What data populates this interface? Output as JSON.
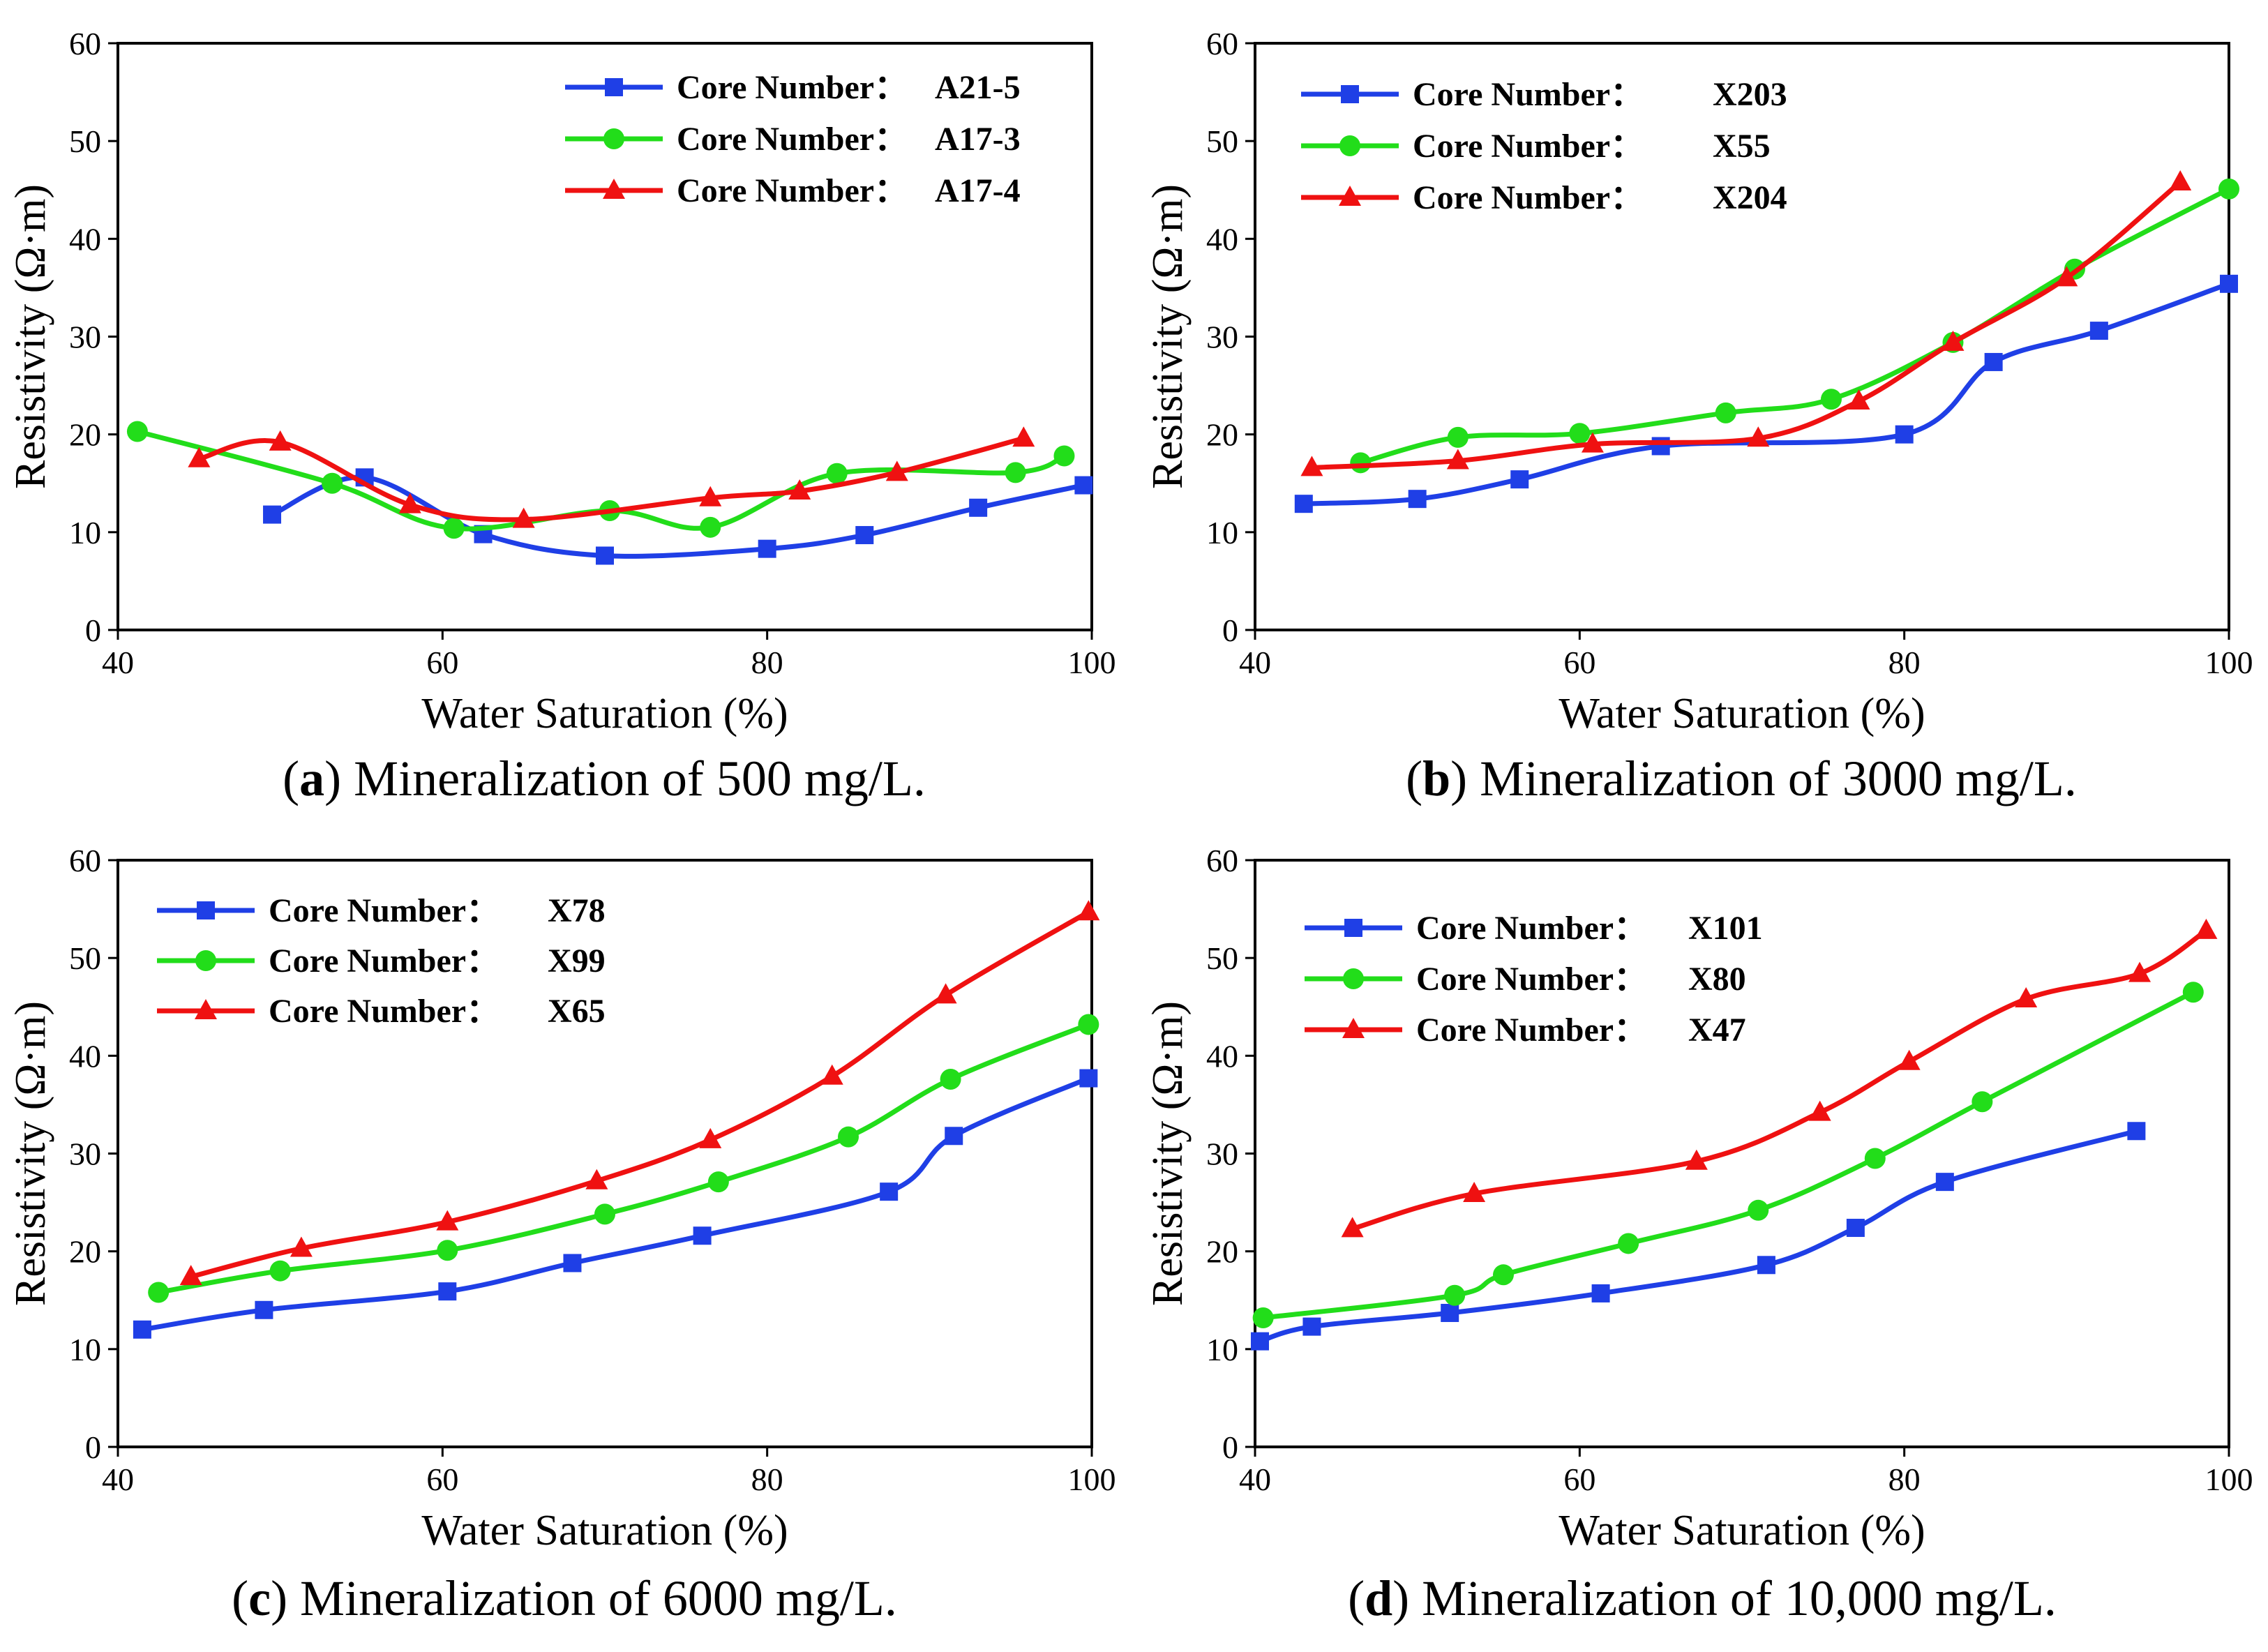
{
  "colors": {
    "blue": "#1f3fe6",
    "green": "#22dd1a",
    "red": "#ef1111"
  },
  "chart_data": [
    {
      "type": "line",
      "panel": "a",
      "caption_label": "a",
      "caption_text": "Mineralization of 500 mg/L.",
      "xlabel": "Water Saturation (%)",
      "ylabel": "Resistivity (Ω·m)",
      "xlim": [
        40,
        100
      ],
      "ylim": [
        0,
        60
      ],
      "xticks": [
        40,
        60,
        80,
        100
      ],
      "yticks": [
        0,
        10,
        20,
        30,
        40,
        50,
        60
      ],
      "legend_position": "top-right",
      "series": [
        {
          "name": "Core Number：",
          "id": "A21-5",
          "color": "blue",
          "marker": "square",
          "x": [
            49.5,
            55.2,
            62.5,
            70,
            80,
            86,
            93,
            99.5
          ],
          "y": [
            11.8,
            15.6,
            9.8,
            7.6,
            8.3,
            9.7,
            12.5,
            14.8
          ]
        },
        {
          "name": "Core Number：",
          "id": "A17-3",
          "color": "green",
          "marker": "circle",
          "x": [
            41.2,
            53.2,
            60.7,
            70.3,
            76.5,
            84.3,
            95.3,
            98.3
          ],
          "y": [
            20.3,
            15,
            10.4,
            12.2,
            10.5,
            16,
            16.1,
            17.8
          ]
        },
        {
          "name": "Core Number：",
          "id": "A17-4",
          "color": "red",
          "marker": "triangle",
          "x": [
            45,
            50,
            58,
            65,
            76.5,
            82,
            88,
            95.8
          ],
          "y": [
            17.5,
            19.2,
            12.8,
            11.3,
            13.5,
            14.2,
            16.1,
            19.6
          ]
        }
      ]
    },
    {
      "type": "line",
      "panel": "b",
      "caption_label": "b",
      "caption_text": "Mineralization of 3000 mg/L.",
      "xlabel": "Water Saturation (%)",
      "ylabel": "Resistivity (Ω·m)",
      "xlim": [
        40,
        100
      ],
      "ylim": [
        0,
        60
      ],
      "xticks": [
        40,
        60,
        80,
        100
      ],
      "yticks": [
        0,
        10,
        20,
        30,
        40,
        50,
        60
      ],
      "legend_position": "top-left",
      "series": [
        {
          "name": "Core Number：",
          "id": "X203",
          "color": "blue",
          "marker": "square",
          "x": [
            43,
            50,
            56.3,
            65,
            80,
            85.5,
            92,
            100
          ],
          "y": [
            12.9,
            13.4,
            15.4,
            18.8,
            20,
            27.4,
            30.6,
            35.4
          ]
        },
        {
          "name": "Core Number：",
          "id": "X55",
          "color": "green",
          "marker": "circle",
          "x": [
            46.5,
            52.5,
            60,
            69,
            75.5,
            83,
            90.5,
            100
          ],
          "y": [
            17.1,
            19.7,
            20.1,
            22.2,
            23.6,
            29.4,
            36.9,
            45.1
          ]
        },
        {
          "name": "Core Number：",
          "id": "X204",
          "color": "red",
          "marker": "triangle",
          "x": [
            43.5,
            52.5,
            60.8,
            71,
            77.2,
            83,
            90,
            97
          ],
          "y": [
            16.6,
            17.3,
            19,
            19.6,
            23.4,
            29.4,
            36,
            45.8
          ]
        }
      ]
    },
    {
      "type": "line",
      "panel": "c",
      "caption_label": "c",
      "caption_text": "Mineralization of 6000 mg/L.",
      "xlabel": "Water Saturation (%)",
      "ylabel": "Resistivity (Ω·m)",
      "xlim": [
        40,
        100
      ],
      "ylim": [
        0,
        60
      ],
      "xticks": [
        40,
        60,
        80,
        100
      ],
      "yticks": [
        0,
        10,
        20,
        30,
        40,
        50,
        60
      ],
      "legend_position": "top-left",
      "series": [
        {
          "name": "Core Number：",
          "id": "X78",
          "color": "blue",
          "marker": "square",
          "x": [
            41.5,
            49,
            60.3,
            68,
            76,
            87.5,
            91.5,
            99.8
          ],
          "y": [
            12,
            14,
            15.9,
            18.8,
            21.6,
            26.1,
            31.8,
            37.7
          ]
        },
        {
          "name": "Core Number：",
          "id": "X99",
          "color": "green",
          "marker": "circle",
          "x": [
            42.5,
            50,
            60.3,
            70,
            77,
            85,
            91.3,
            99.8
          ],
          "y": [
            15.8,
            18,
            20.1,
            23.8,
            27.1,
            31.7,
            37.6,
            43.2
          ]
        },
        {
          "name": "Core Number：",
          "id": "X65",
          "color": "red",
          "marker": "triangle",
          "x": [
            44.5,
            51.3,
            60.3,
            69.5,
            76.5,
            84,
            91,
            99.8
          ],
          "y": [
            17.4,
            20.3,
            23,
            27.2,
            31.4,
            37.9,
            46.2,
            54.7
          ]
        }
      ]
    },
    {
      "type": "line",
      "panel": "d",
      "caption_label": "d",
      "caption_text": "Mineralization of 10,000 mg/L.",
      "xlabel": "Water Saturation (%)",
      "ylabel": "Resistivity (Ω·m)",
      "xlim": [
        40,
        100
      ],
      "ylim": [
        0,
        60
      ],
      "xticks": [
        40,
        60,
        80,
        100
      ],
      "yticks": [
        0,
        10,
        20,
        30,
        40,
        50,
        60
      ],
      "legend_position": "top-left",
      "series": [
        {
          "name": "Core Number：",
          "id": "X101",
          "color": "blue",
          "marker": "square",
          "x": [
            40.3,
            43.5,
            52,
            61.3,
            71.5,
            77,
            82.5,
            94.3
          ],
          "y": [
            10.8,
            12.3,
            13.7,
            15.7,
            18.6,
            22.4,
            27.1,
            32.3
          ]
        },
        {
          "name": "Core Number：",
          "id": "X80",
          "color": "green",
          "marker": "circle",
          "x": [
            40.5,
            52.3,
            55.3,
            63,
            71,
            78.2,
            84.8,
            97.8
          ],
          "y": [
            13.2,
            15.5,
            17.6,
            20.8,
            24.2,
            29.5,
            35.3,
            46.5
          ]
        },
        {
          "name": "Core Number：",
          "id": "X47",
          "color": "red",
          "marker": "triangle",
          "x": [
            46,
            53.5,
            67.2,
            74.8,
            80.3,
            87.5,
            94.5,
            98.6
          ],
          "y": [
            22.3,
            25.9,
            29.2,
            34.2,
            39.4,
            45.8,
            48.4,
            52.8
          ]
        }
      ]
    }
  ]
}
